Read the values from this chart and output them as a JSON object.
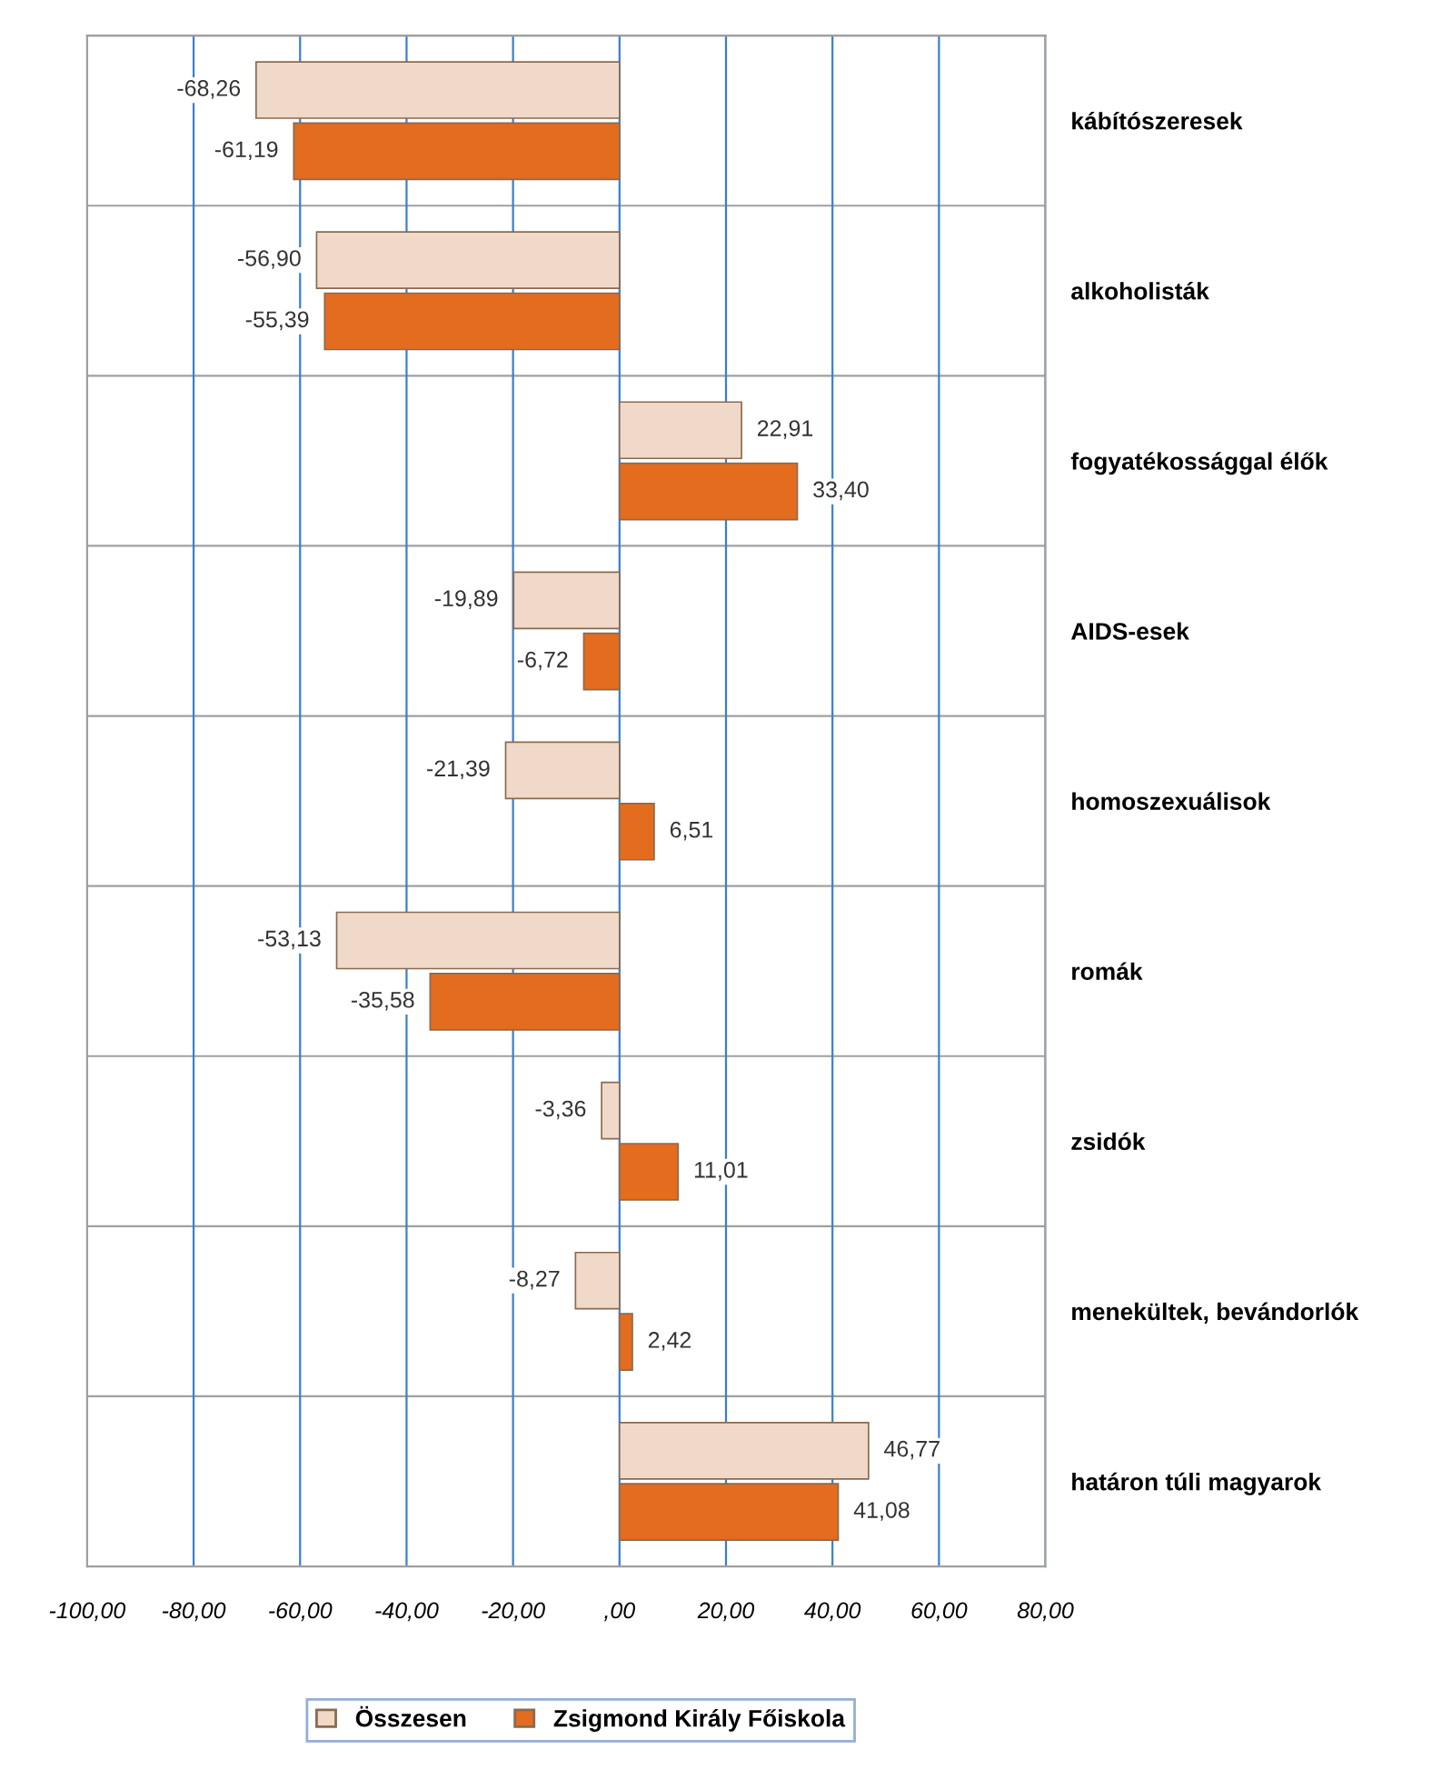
{
  "chart_data": {
    "type": "bar",
    "orientation": "horizontal",
    "categories": [
      "kábítószeresek",
      "alkoholisták",
      "fogyatékossággal élők",
      "AIDS-esek",
      "homoszexuálisok",
      "romák",
      "zsidók",
      "menekültek, bevándorlók",
      "határon túli magyarok"
    ],
    "series": [
      {
        "name": "Összesen",
        "color": "#f0d9c8",
        "values": [
          -68.26,
          -56.9,
          22.91,
          -19.89,
          -21.39,
          -53.13,
          -3.36,
          -8.27,
          46.77
        ],
        "value_labels": [
          "-68,26",
          "-56,90",
          "22,91",
          "-19,89",
          "-21,39",
          "-53,13",
          "-3,36",
          "-8,27",
          "46,77"
        ]
      },
      {
        "name": "Zsigmond Király Főiskola",
        "color": "#e46c1e",
        "values": [
          -61.19,
          -55.39,
          33.4,
          -6.72,
          6.51,
          -35.58,
          11.01,
          2.42,
          41.08
        ],
        "value_labels": [
          "-61,19",
          "-55,39",
          "33,40",
          "-6,72",
          "6,51",
          "-35,58",
          "11,01",
          "2,42",
          "41,08"
        ]
      }
    ],
    "xlim": [
      -100,
      80
    ],
    "xticks": [
      {
        "value": -100,
        "label": "-100,00"
      },
      {
        "value": -80,
        "label": "-80,00"
      },
      {
        "value": -60,
        "label": "-60,00"
      },
      {
        "value": -40,
        "label": "-40,00"
      },
      {
        "value": -20,
        "label": "-20,00"
      },
      {
        "value": 0,
        "label": ",00"
      },
      {
        "value": 20,
        "label": "20,00"
      },
      {
        "value": 40,
        "label": "40,00"
      },
      {
        "value": 60,
        "label": "60,00"
      },
      {
        "value": 80,
        "label": "80,00"
      }
    ],
    "grid": true,
    "legend": "bottom"
  }
}
